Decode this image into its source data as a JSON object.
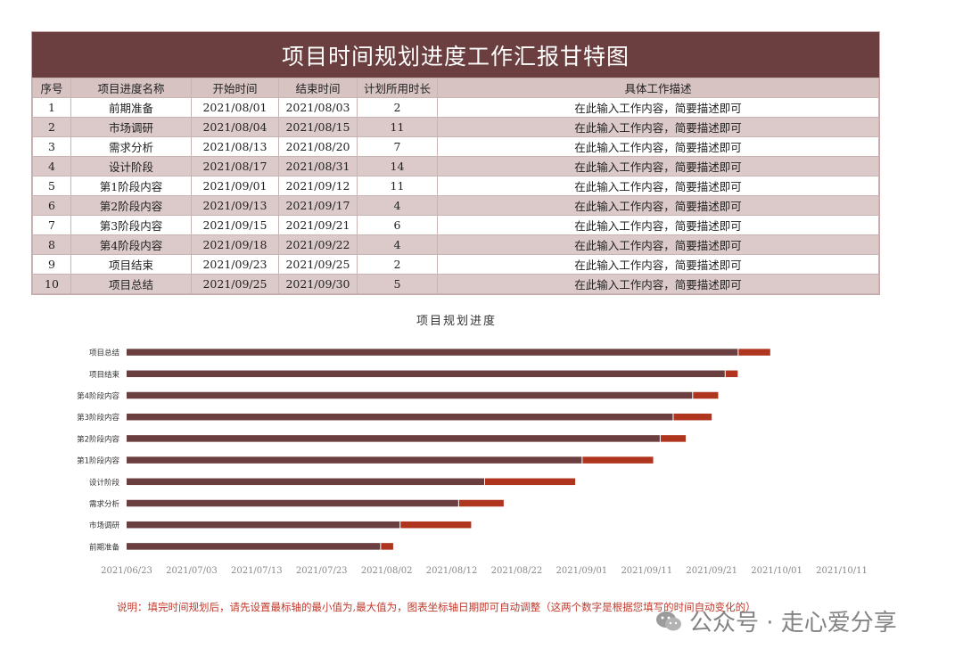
{
  "title": "项目时间规划进度工作汇报甘特图",
  "table": {
    "headers": [
      "序号",
      "项目进度名称",
      "开始时间",
      "结束时间",
      "计划所用时长",
      "具体工作描述"
    ],
    "rows": [
      [
        "1",
        "前期准备",
        "2021/08/01",
        "2021/08/03",
        "2",
        "在此输入工作内容，简要描述即可"
      ],
      [
        "2",
        "市场调研",
        "2021/08/04",
        "2021/08/15",
        "11",
        "在此输入工作内容，简要描述即可"
      ],
      [
        "3",
        "需求分析",
        "2021/08/13",
        "2021/08/20",
        "7",
        "在此输入工作内容，简要描述即可"
      ],
      [
        "4",
        "设计阶段",
        "2021/08/17",
        "2021/08/31",
        "14",
        "在此输入工作内容，简要描述即可"
      ],
      [
        "5",
        "第1阶段内容",
        "2021/09/01",
        "2021/09/12",
        "11",
        "在此输入工作内容，简要描述即可"
      ],
      [
        "6",
        "第2阶段内容",
        "2021/09/13",
        "2021/09/17",
        "4",
        "在此输入工作内容，简要描述即可"
      ],
      [
        "7",
        "第3阶段内容",
        "2021/09/15",
        "2021/09/21",
        "6",
        "在此输入工作内容，简要描述即可"
      ],
      [
        "8",
        "第4阶段内容",
        "2021/09/18",
        "2021/09/22",
        "4",
        "在此输入工作内容，简要描述即可"
      ],
      [
        "9",
        "项目结束",
        "2021/09/23",
        "2021/09/25",
        "2",
        "在此输入工作内容，简要描述即可"
      ],
      [
        "10",
        "项目总结",
        "2021/09/25",
        "2021/09/30",
        "5",
        "在此输入工作内容，简要描述即可"
      ]
    ]
  },
  "chart_data": {
    "type": "bar",
    "orientation": "horizontal",
    "stacked": true,
    "title": "项目规划进度",
    "categories": [
      "前期准备",
      "市场调研",
      "需求分析",
      "设计阶段",
      "第1阶段内容",
      "第2阶段内容",
      "第3阶段内容",
      "第4阶段内容",
      "项目结束",
      "项目总结"
    ],
    "category_labels": [
      "前期准备",
      "市场调研",
      "需求分析",
      "设计阶段",
      "第1阶段内容",
      "第2阶段内容",
      "第3阶段内容",
      "第4阶段内容",
      "项目结束",
      "项目总结"
    ],
    "series": [
      {
        "values": [
          "2021/08/01",
          "2021/08/04",
          "2021/08/13",
          "2021/08/17",
          "2021/09/01",
          "2021/09/13",
          "2021/09/15",
          "2021/09/18",
          "2021/09/23",
          "2021/09/25"
        ],
        "color": "#6b3f3f"
      },
      {
        "values": [
          2,
          11,
          7,
          14,
          11,
          4,
          6,
          4,
          2,
          5
        ],
        "color": "#b0351f"
      }
    ],
    "x_ticks": [
      "2021/06/23",
      "2021/07/03",
      "2021/07/13",
      "2021/07/23",
      "2021/08/02",
      "2021/08/12",
      "2021/08/22",
      "2021/09/01",
      "2021/09/11",
      "2021/09/21",
      "2021/10/01",
      "2021/10/11"
    ],
    "xlim": [
      "2021/06/23",
      "2021/10/11"
    ],
    "grid": false,
    "legend": "none"
  },
  "note": "说明：填完时间规划后，请先设置最标轴的最小值为,最大值为，图表坐标轴日期即可自动调整（这两个数字是根据您填写的时间自动变化的）",
  "watermark": "公众号 · 走心爱分享"
}
